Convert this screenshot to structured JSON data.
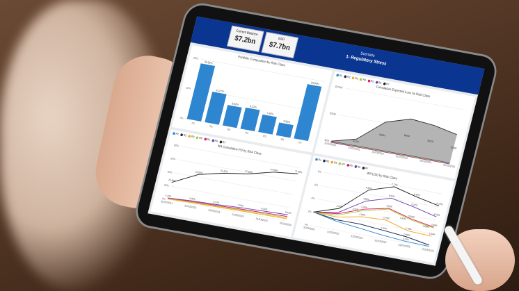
{
  "colors": {
    "header": "#0a3590",
    "bar": "#2e86d0",
    "area": "#b4b4b4",
    "R1": "#2e86d0",
    "R2": "#1a2a50",
    "R3": "#f5a623",
    "R4": "#a8d12a",
    "R5": "#e8196b",
    "R6": "#6a3fb0",
    "R7": "#222222"
  },
  "header": {
    "kpis": [
      {
        "label": "Current Balance",
        "value": "$7.2bn"
      },
      {
        "label": "EAD",
        "value": "$7.7bn"
      }
    ],
    "scenario_label": "Scenario",
    "scenario_value": "1- Regulatory Stress"
  },
  "legend": [
    "R1",
    "R2",
    "R3",
    "R4",
    "R5",
    "R6",
    "R7"
  ],
  "chart_data": [
    {
      "type": "bar",
      "title": "Portfolio Composition by Risk Class",
      "categories": [
        "R1",
        "R2",
        "R3",
        "R4",
        "R5",
        "R6",
        "R7"
      ],
      "values": [
        24.22,
        13.27,
        8.92,
        9.21,
        7.6,
        5.52,
        23.66
      ],
      "labels": [
        "24.22%",
        "13.27%",
        "8.92%",
        "9.21%",
        "7.60%",
        "5.52%",
        "23.66%"
      ],
      "yticks": [
        "0%",
        "10%",
        "20%"
      ],
      "ylim": [
        0,
        26
      ]
    },
    {
      "type": "area",
      "title": "Cumulative Expected Loss by Risk Class",
      "categories": [
        "31/03/2021",
        "31/03/2022",
        "31/03/2023",
        "31/03/2024",
        "31/03/2025",
        "31/03/2026"
      ],
      "values": [
        0,
        12,
        52,
        66,
        62,
        53
      ],
      "labels": [
        "",
        "$12M",
        "$52M",
        "$66M",
        "$62M",
        "$53M"
      ],
      "yticks": [
        "$0M",
        "$50M",
        "$100M"
      ],
      "ylim": [
        0,
        100
      ]
    },
    {
      "type": "line",
      "title": "WA Cumulative PD by Risk Class",
      "categories": [
        "31/03/2021",
        "31/03/2022",
        "31/03/2023",
        "31/03/2024",
        "31/03/2025",
        "31/03/2026"
      ],
      "yticks": [
        "0%",
        "20%",
        "40%",
        "60%",
        "80%"
      ],
      "ylim": [
        0,
        80
      ],
      "series": [
        {
          "name": "R7",
          "values": [
            25.49,
            43.92,
            52.42,
            57.92,
            67.09,
            71.09
          ],
          "labels": [
            "25.49%",
            "43.92%",
            "52.42%",
            "57.92%",
            "67.09%",
            "71.09%"
          ]
        },
        {
          "name": "R6",
          "values": [
            2.1,
            4.3,
            5.37,
            7.25,
            8.42,
            9.41
          ],
          "labels": [
            "2.10%",
            "4.30%",
            "5.37%",
            "7.25%",
            "8.42%",
            "9.41%"
          ]
        },
        {
          "name": "R5",
          "values": [
            1.6,
            3.2,
            4.1,
            5.2,
            6.0,
            6.8
          ],
          "labels": []
        },
        {
          "name": "R4",
          "values": [
            1.2,
            2.4,
            3.1,
            3.9,
            4.5,
            5.0
          ],
          "labels": []
        },
        {
          "name": "R3",
          "values": [
            0.8,
            1.6,
            2.1,
            2.6,
            3.0,
            3.4
          ],
          "labels": []
        }
      ]
    },
    {
      "type": "line",
      "title": "WA LGD by Risk Class",
      "categories": [
        "31/03/2021",
        "31/03/2022",
        "31/03/2023",
        "31/03/2024",
        "31/03/2025",
        "31/03/2026"
      ],
      "yticks": [
        "0%",
        "2%",
        "4%",
        "6%",
        "8%"
      ],
      "ylim": [
        0,
        8
      ],
      "series": [
        {
          "name": "R7",
          "values": [
            2.0,
            3.2,
            6.6,
            7.77,
            6.9,
            6.18
          ],
          "labels": [
            "",
            "3.20%",
            "6.60%",
            "7.77%",
            "6.90%",
            "6.18%"
          ]
        },
        {
          "name": "R6",
          "values": [
            2.0,
            2.6,
            4.95,
            6.05,
            5.37,
            4.55
          ],
          "labels": [
            "",
            "",
            "4.95%",
            "6.05%",
            "5.37%",
            "4.55%"
          ]
        },
        {
          "name": "R5",
          "values": [
            2.0,
            2.4,
            3.74,
            4.52,
            3.59,
            2.99
          ],
          "labels": [
            "",
            "",
            "3.74%",
            "4.52%",
            "3.59%",
            "2.99%"
          ]
        },
        {
          "name": "R4",
          "values": [
            2.0,
            2.2,
            3.52,
            4.4,
            3.44,
            2.88
          ],
          "labels": [
            "",
            "",
            "3.52%",
            "",
            "3.44%",
            "2.88%"
          ]
        },
        {
          "name": "R3",
          "values": [
            2.0,
            1.9,
            2.6,
            2.75,
            1.78,
            1.64
          ],
          "labels": [
            "",
            "",
            "2.60%",
            "2.75%",
            "1.78%",
            "1.64%"
          ]
        },
        {
          "name": "R2",
          "values": [
            2.0,
            1.5,
            1.5,
            1.2,
            0.88,
            0.28
          ],
          "labels": [
            "",
            "",
            "",
            "1.20%",
            "0.88%",
            ""
          ]
        },
        {
          "name": "R1",
          "values": [
            2.0,
            1.3,
            0.9,
            0.5,
            0.21,
            0.1
          ],
          "labels": [
            "",
            "",
            "",
            "",
            "0.21%",
            ""
          ]
        }
      ]
    }
  ]
}
